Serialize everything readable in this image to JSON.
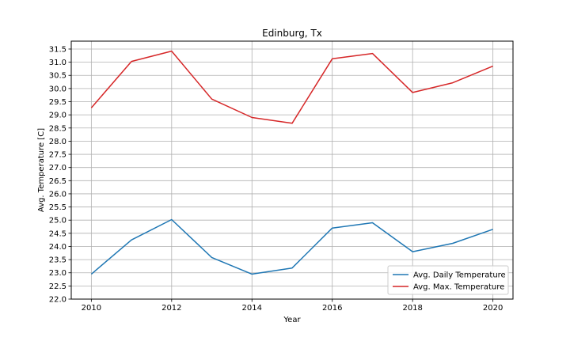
{
  "chart_data": {
    "type": "line",
    "title": "Edinburg, Tx",
    "xlabel": "Year",
    "ylabel": "Avg. Temperature [C]",
    "x": [
      2010,
      2011,
      2012,
      2013,
      2014,
      2015,
      2016,
      2017,
      2018,
      2019,
      2020
    ],
    "xlim": [
      2009.5,
      2020.5
    ],
    "ylim": [
      22.0,
      31.8
    ],
    "x_ticks": [
      "2010",
      "2012",
      "2014",
      "2016",
      "2018",
      "2020"
    ],
    "y_ticks": [
      "22.0",
      "22.5",
      "23.0",
      "23.5",
      "24.0",
      "24.5",
      "25.0",
      "25.5",
      "26.0",
      "26.5",
      "27.0",
      "27.5",
      "28.0",
      "28.5",
      "29.0",
      "29.5",
      "30.0",
      "30.5",
      "31.0",
      "31.5"
    ],
    "grid": true,
    "legend_position": "lower-right",
    "series": [
      {
        "name": "Avg. Daily Temperature",
        "color": "#1f77b4",
        "values": [
          22.95,
          24.25,
          25.02,
          23.58,
          22.95,
          23.18,
          24.7,
          24.9,
          23.8,
          24.12,
          24.65
        ]
      },
      {
        "name": "Avg. Max. Temperature",
        "color": "#d62728",
        "values": [
          29.27,
          31.03,
          31.42,
          29.6,
          28.9,
          28.68,
          31.13,
          31.33,
          29.85,
          30.22,
          30.85
        ]
      }
    ]
  }
}
